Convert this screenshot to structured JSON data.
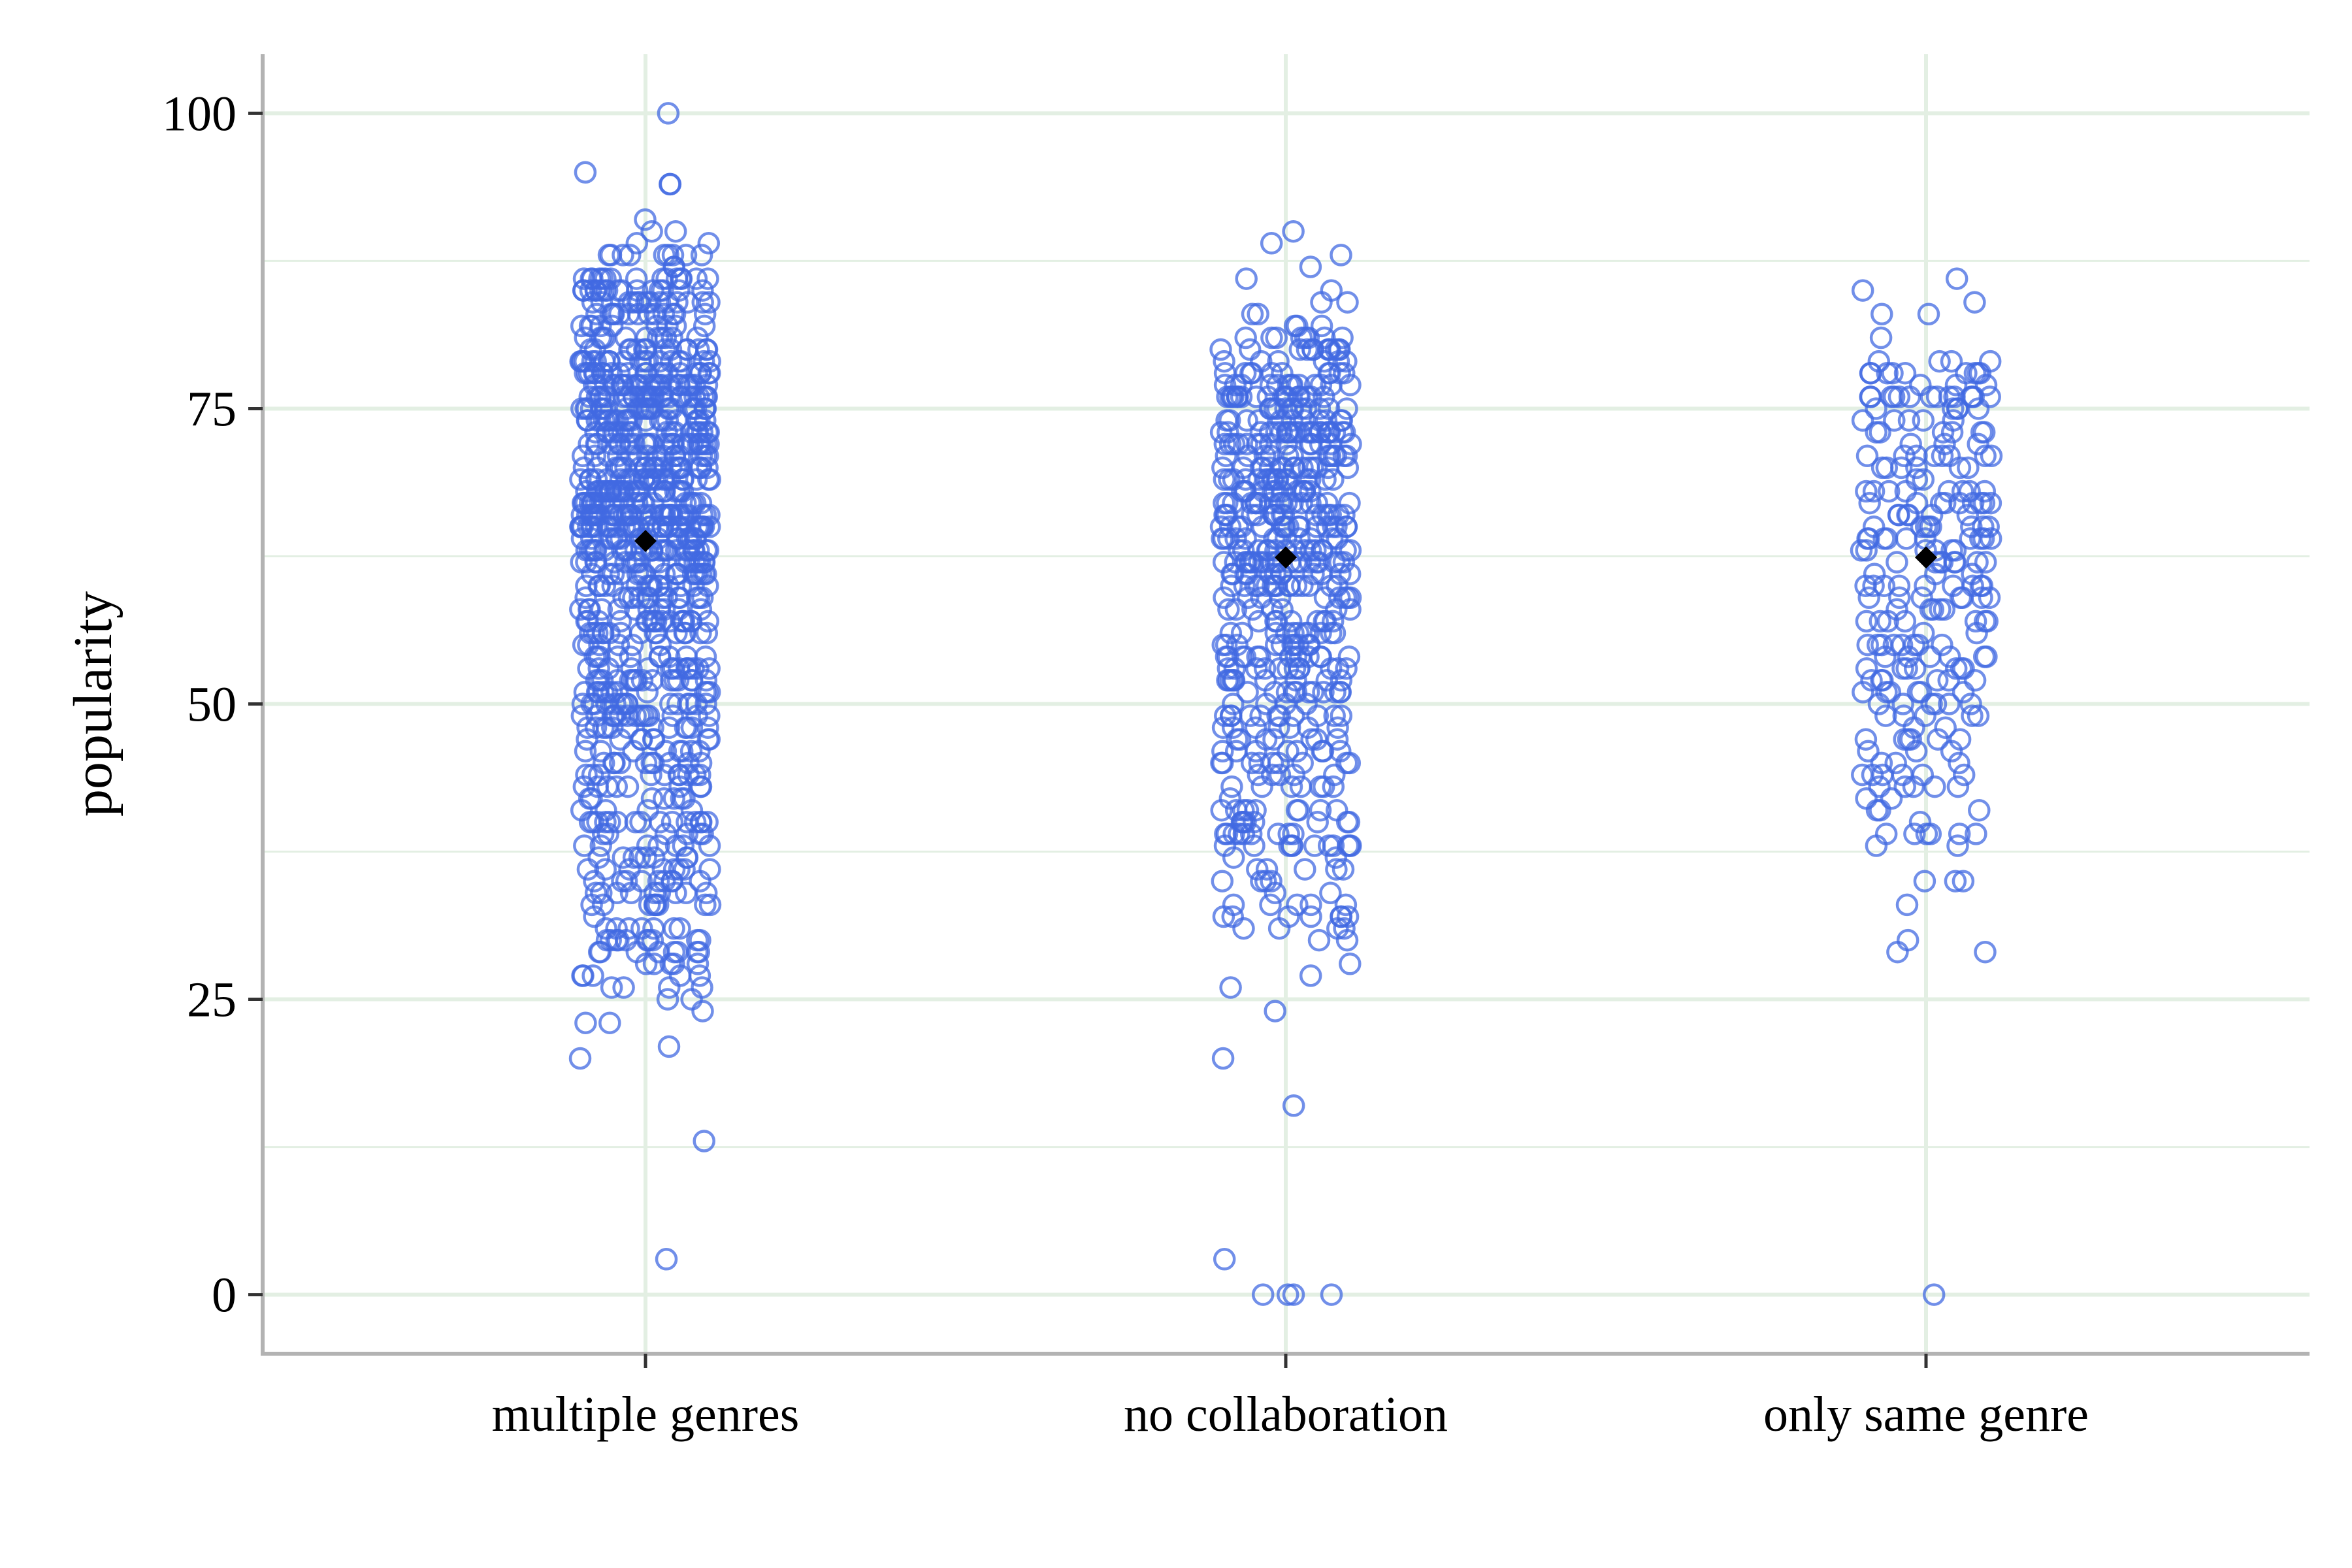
{
  "chart_data": {
    "type": "scatter",
    "subtype": "jitter strip plot with group means",
    "title": "",
    "xlabel": "",
    "ylabel": "popularity",
    "ylim": [
      -5,
      105
    ],
    "yticks": [
      0,
      25,
      50,
      75,
      100
    ],
    "categories": [
      "multiple genres",
      "no collaboration",
      "only same genre"
    ],
    "grid": true,
    "legend": "none",
    "colors": {
      "points": "#4169e1",
      "mean_marker": "#000000",
      "grid": "#e3efe3",
      "axis": "#b3b3b3"
    },
    "means": [
      63.8,
      62.4,
      62.4
    ],
    "groups": [
      {
        "name": "multiple genres",
        "point_count_approx": 900,
        "mean": 63.8,
        "min": 3,
        "max": 100,
        "outlier_values": [
          100,
          95,
          94,
          94,
          91,
          90,
          90,
          89,
          89,
          88,
          88,
          87,
          86,
          85,
          35,
          34,
          34,
          33,
          33,
          33,
          31,
          31,
          30,
          30,
          29,
          29,
          29,
          28,
          26,
          25,
          24,
          23,
          23,
          21,
          20,
          13,
          3
        ],
        "density_quantiles": [
          25,
          36,
          44,
          49,
          53,
          57,
          60,
          63,
          65,
          67,
          69,
          71,
          73,
          75,
          77,
          80,
          84,
          88
        ]
      },
      {
        "name": "no collaboration",
        "point_count_approx": 550,
        "mean": 62.4,
        "min": 0,
        "max": 90,
        "outlier_values": [
          90,
          89,
          88,
          87,
          86,
          85,
          84,
          84,
          83,
          83,
          82,
          31,
          31,
          30,
          28,
          27,
          26,
          24,
          20,
          16,
          3,
          0,
          0,
          0,
          0
        ],
        "density_quantiles": [
          30,
          38,
          43,
          47,
          51,
          54,
          57,
          60,
          62,
          64,
          66,
          68,
          70,
          72,
          74,
          76,
          79,
          82
        ]
      },
      {
        "name": "only same genre",
        "point_count_approx": 250,
        "mean": 62.4,
        "min": 0,
        "max": 86,
        "outlier_values": [
          86,
          85,
          84,
          83,
          83,
          81,
          35,
          35,
          35,
          33,
          30,
          29,
          29,
          0
        ],
        "density_quantiles": [
          38,
          43,
          47,
          51,
          54,
          57,
          59,
          61,
          63,
          65,
          67,
          69,
          71,
          73,
          75,
          77,
          79
        ]
      }
    ]
  }
}
